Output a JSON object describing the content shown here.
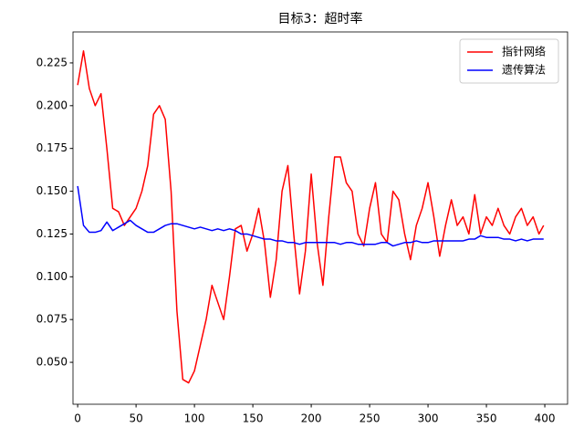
{
  "chart_data": {
    "type": "line",
    "title": "目标3：超时率",
    "x": [
      0,
      5,
      10,
      15,
      20,
      25,
      30,
      35,
      40,
      45,
      50,
      55,
      60,
      65,
      70,
      75,
      80,
      85,
      90,
      95,
      100,
      105,
      110,
      115,
      120,
      125,
      130,
      135,
      140,
      145,
      150,
      155,
      160,
      165,
      170,
      175,
      180,
      185,
      190,
      195,
      200,
      205,
      210,
      215,
      220,
      225,
      230,
      235,
      240,
      245,
      250,
      255,
      260,
      265,
      270,
      275,
      280,
      285,
      290,
      295,
      300,
      305,
      310,
      315,
      320,
      325,
      330,
      335,
      340,
      345,
      350,
      355,
      360,
      365,
      370,
      375,
      380,
      385,
      390,
      395,
      399
    ],
    "series": [
      {
        "name": "指针网络",
        "color": "#ff0000",
        "values": [
          0.212,
          0.232,
          0.21,
          0.2,
          0.207,
          0.175,
          0.14,
          0.138,
          0.13,
          0.135,
          0.14,
          0.15,
          0.165,
          0.195,
          0.2,
          0.192,
          0.15,
          0.08,
          0.04,
          0.038,
          0.045,
          0.06,
          0.075,
          0.095,
          0.085,
          0.075,
          0.1,
          0.128,
          0.13,
          0.115,
          0.125,
          0.14,
          0.12,
          0.088,
          0.11,
          0.15,
          0.165,
          0.125,
          0.09,
          0.115,
          0.16,
          0.12,
          0.095,
          0.135,
          0.17,
          0.17,
          0.155,
          0.15,
          0.125,
          0.118,
          0.14,
          0.155,
          0.125,
          0.12,
          0.15,
          0.145,
          0.125,
          0.11,
          0.13,
          0.14,
          0.155,
          0.135,
          0.112,
          0.13,
          0.145,
          0.13,
          0.135,
          0.125,
          0.148,
          0.125,
          0.135,
          0.13,
          0.14,
          0.13,
          0.125,
          0.135,
          0.14,
          0.13,
          0.135,
          0.125,
          0.13
        ]
      },
      {
        "name": "遗传算法",
        "color": "#0000ff",
        "values": [
          0.153,
          0.13,
          0.126,
          0.126,
          0.127,
          0.132,
          0.127,
          0.129,
          0.131,
          0.133,
          0.13,
          0.128,
          0.126,
          0.126,
          0.128,
          0.13,
          0.131,
          0.131,
          0.13,
          0.129,
          0.128,
          0.129,
          0.128,
          0.127,
          0.128,
          0.127,
          0.128,
          0.127,
          0.125,
          0.125,
          0.124,
          0.123,
          0.122,
          0.122,
          0.121,
          0.121,
          0.12,
          0.12,
          0.119,
          0.12,
          0.12,
          0.12,
          0.12,
          0.12,
          0.12,
          0.119,
          0.12,
          0.12,
          0.119,
          0.119,
          0.119,
          0.119,
          0.12,
          0.12,
          0.118,
          0.119,
          0.12,
          0.12,
          0.121,
          0.12,
          0.12,
          0.121,
          0.121,
          0.121,
          0.121,
          0.121,
          0.121,
          0.122,
          0.122,
          0.124,
          0.123,
          0.123,
          0.123,
          0.122,
          0.122,
          0.121,
          0.122,
          0.121,
          0.122,
          0.122,
          0.122
        ]
      }
    ],
    "xlim": [
      -4,
      419.5
    ],
    "ylim": [
      0.0255,
      0.2431
    ],
    "xticks": [
      0,
      50,
      100,
      150,
      200,
      250,
      300,
      350,
      400
    ],
    "yticks": [
      {
        "value": 0.05,
        "label": "0.050"
      },
      0.075,
      {
        "value": 0.1,
        "label": "0.100"
      },
      0.125,
      {
        "value": 0.15,
        "label": "0.150"
      },
      0.175,
      {
        "value": 0.2,
        "label": "0.200"
      },
      0.225
    ],
    "legend": "upper right"
  }
}
